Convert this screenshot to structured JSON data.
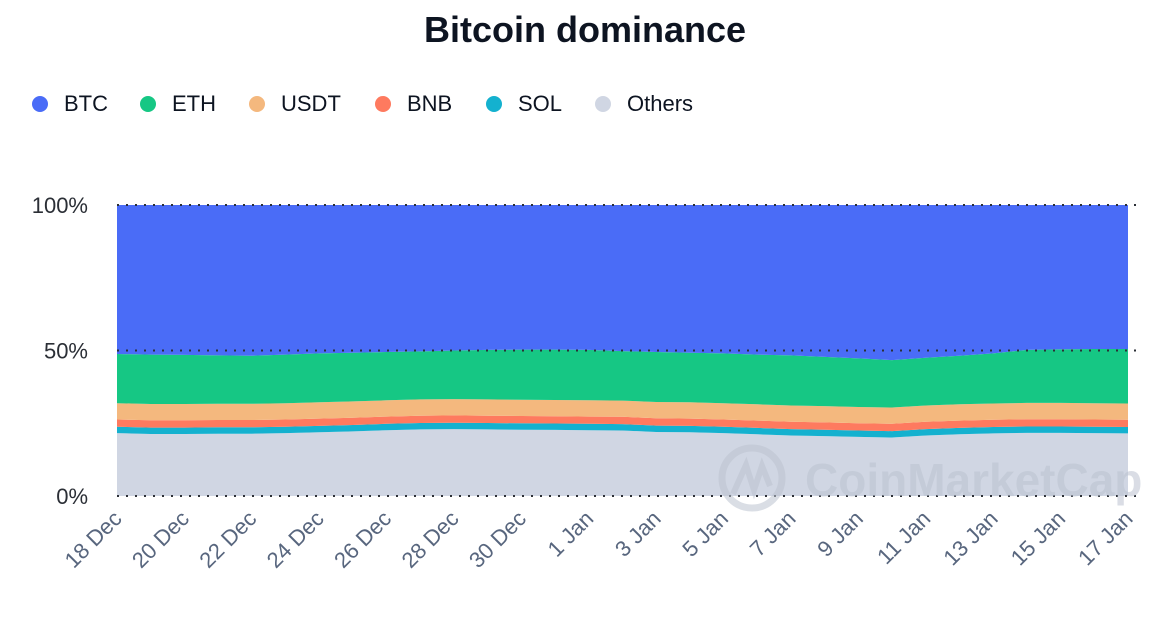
{
  "chart_data": {
    "type": "area",
    "stacked": true,
    "normalized": true,
    "title": "Bitcoin dominance",
    "xlabel": "",
    "ylabel": "",
    "ylim": [
      0,
      100
    ],
    "yticks": [
      "0%",
      "50%",
      "100%"
    ],
    "xtick_labels": [
      "18 Dec",
      "20 Dec",
      "22 Dec",
      "24 Dec",
      "26 Dec",
      "28 Dec",
      "30 Dec",
      "1 Jan",
      "3 Jan",
      "5 Jan",
      "7 Jan",
      "9 Jan",
      "11 Jan",
      "13 Jan",
      "15 Jan",
      "17 Jan"
    ],
    "grid": "dotted horizontal at 0%, 50%, 100%",
    "legend_position": "top-left",
    "x": [
      "18 Dec",
      "19 Dec",
      "20 Dec",
      "21 Dec",
      "22 Dec",
      "23 Dec",
      "24 Dec",
      "25 Dec",
      "26 Dec",
      "27 Dec",
      "28 Dec",
      "29 Dec",
      "30 Dec",
      "31 Dec",
      "1 Jan",
      "2 Jan",
      "3 Jan",
      "4 Jan",
      "5 Jan",
      "6 Jan",
      "7 Jan",
      "8 Jan",
      "9 Jan",
      "10 Jan",
      "11 Jan",
      "12 Jan",
      "13 Jan",
      "14 Jan",
      "15 Jan",
      "16 Jan",
      "17 Jan"
    ],
    "series": [
      {
        "name": "Others",
        "color": "#d0d6e3",
        "values": [
          21.6,
          21.3,
          21.3,
          21.4,
          21.4,
          21.6,
          21.9,
          22.2,
          22.6,
          22.9,
          23.0,
          22.9,
          22.8,
          22.7,
          22.6,
          22.5,
          22.0,
          21.9,
          21.6,
          21.2,
          20.8,
          20.6,
          20.3,
          20.1,
          20.8,
          21.2,
          21.5,
          21.7,
          21.7,
          21.6,
          21.5
        ]
      },
      {
        "name": "SOL",
        "color": "#14b1cf",
        "values": [
          2.2,
          2.2,
          2.2,
          2.2,
          2.2,
          2.2,
          2.2,
          2.2,
          2.2,
          2.2,
          2.2,
          2.2,
          2.2,
          2.2,
          2.2,
          2.2,
          2.2,
          2.2,
          2.2,
          2.2,
          2.2,
          2.2,
          2.2,
          2.2,
          2.2,
          2.2,
          2.2,
          2.2,
          2.2,
          2.2,
          2.2
        ]
      },
      {
        "name": "BNB",
        "color": "#fe7a5f",
        "values": [
          2.5,
          2.5,
          2.5,
          2.5,
          2.5,
          2.5,
          2.5,
          2.5,
          2.5,
          2.5,
          2.5,
          2.5,
          2.5,
          2.5,
          2.5,
          2.5,
          2.5,
          2.5,
          2.5,
          2.5,
          2.5,
          2.5,
          2.5,
          2.5,
          2.5,
          2.5,
          2.5,
          2.5,
          2.5,
          2.5,
          2.5
        ]
      },
      {
        "name": "USDT",
        "color": "#f4b87e",
        "values": [
          5.6,
          5.6,
          5.6,
          5.6,
          5.6,
          5.6,
          5.6,
          5.6,
          5.6,
          5.6,
          5.6,
          5.6,
          5.6,
          5.6,
          5.6,
          5.6,
          5.6,
          5.6,
          5.6,
          5.6,
          5.6,
          5.6,
          5.6,
          5.6,
          5.6,
          5.6,
          5.6,
          5.6,
          5.6,
          5.6,
          5.6
        ]
      },
      {
        "name": "ETH",
        "color": "#16c784",
        "values": [
          16.9,
          17.0,
          16.9,
          16.6,
          16.5,
          16.7,
          16.8,
          16.7,
          16.6,
          16.5,
          16.7,
          17.0,
          17.2,
          17.3,
          17.3,
          17.0,
          17.2,
          17.0,
          17.1,
          17.1,
          17.2,
          16.9,
          16.7,
          16.3,
          16.4,
          16.7,
          17.2,
          18.2,
          18.4,
          18.6,
          18.7
        ]
      },
      {
        "name": "BTC",
        "color": "#4a6cf7",
        "values": [
          51.2,
          51.4,
          51.5,
          51.7,
          51.8,
          51.4,
          51.0,
          50.8,
          50.5,
          50.3,
          50.0,
          49.8,
          49.7,
          49.7,
          49.8,
          50.2,
          50.5,
          50.8,
          51.0,
          51.4,
          51.7,
          52.2,
          52.7,
          53.3,
          52.5,
          51.8,
          51.0,
          49.8,
          49.6,
          49.5,
          49.5
        ]
      }
    ],
    "legend": [
      "BTC",
      "ETH",
      "USDT",
      "BNB",
      "SOL",
      "Others"
    ],
    "watermark": "CoinMarketCap"
  }
}
